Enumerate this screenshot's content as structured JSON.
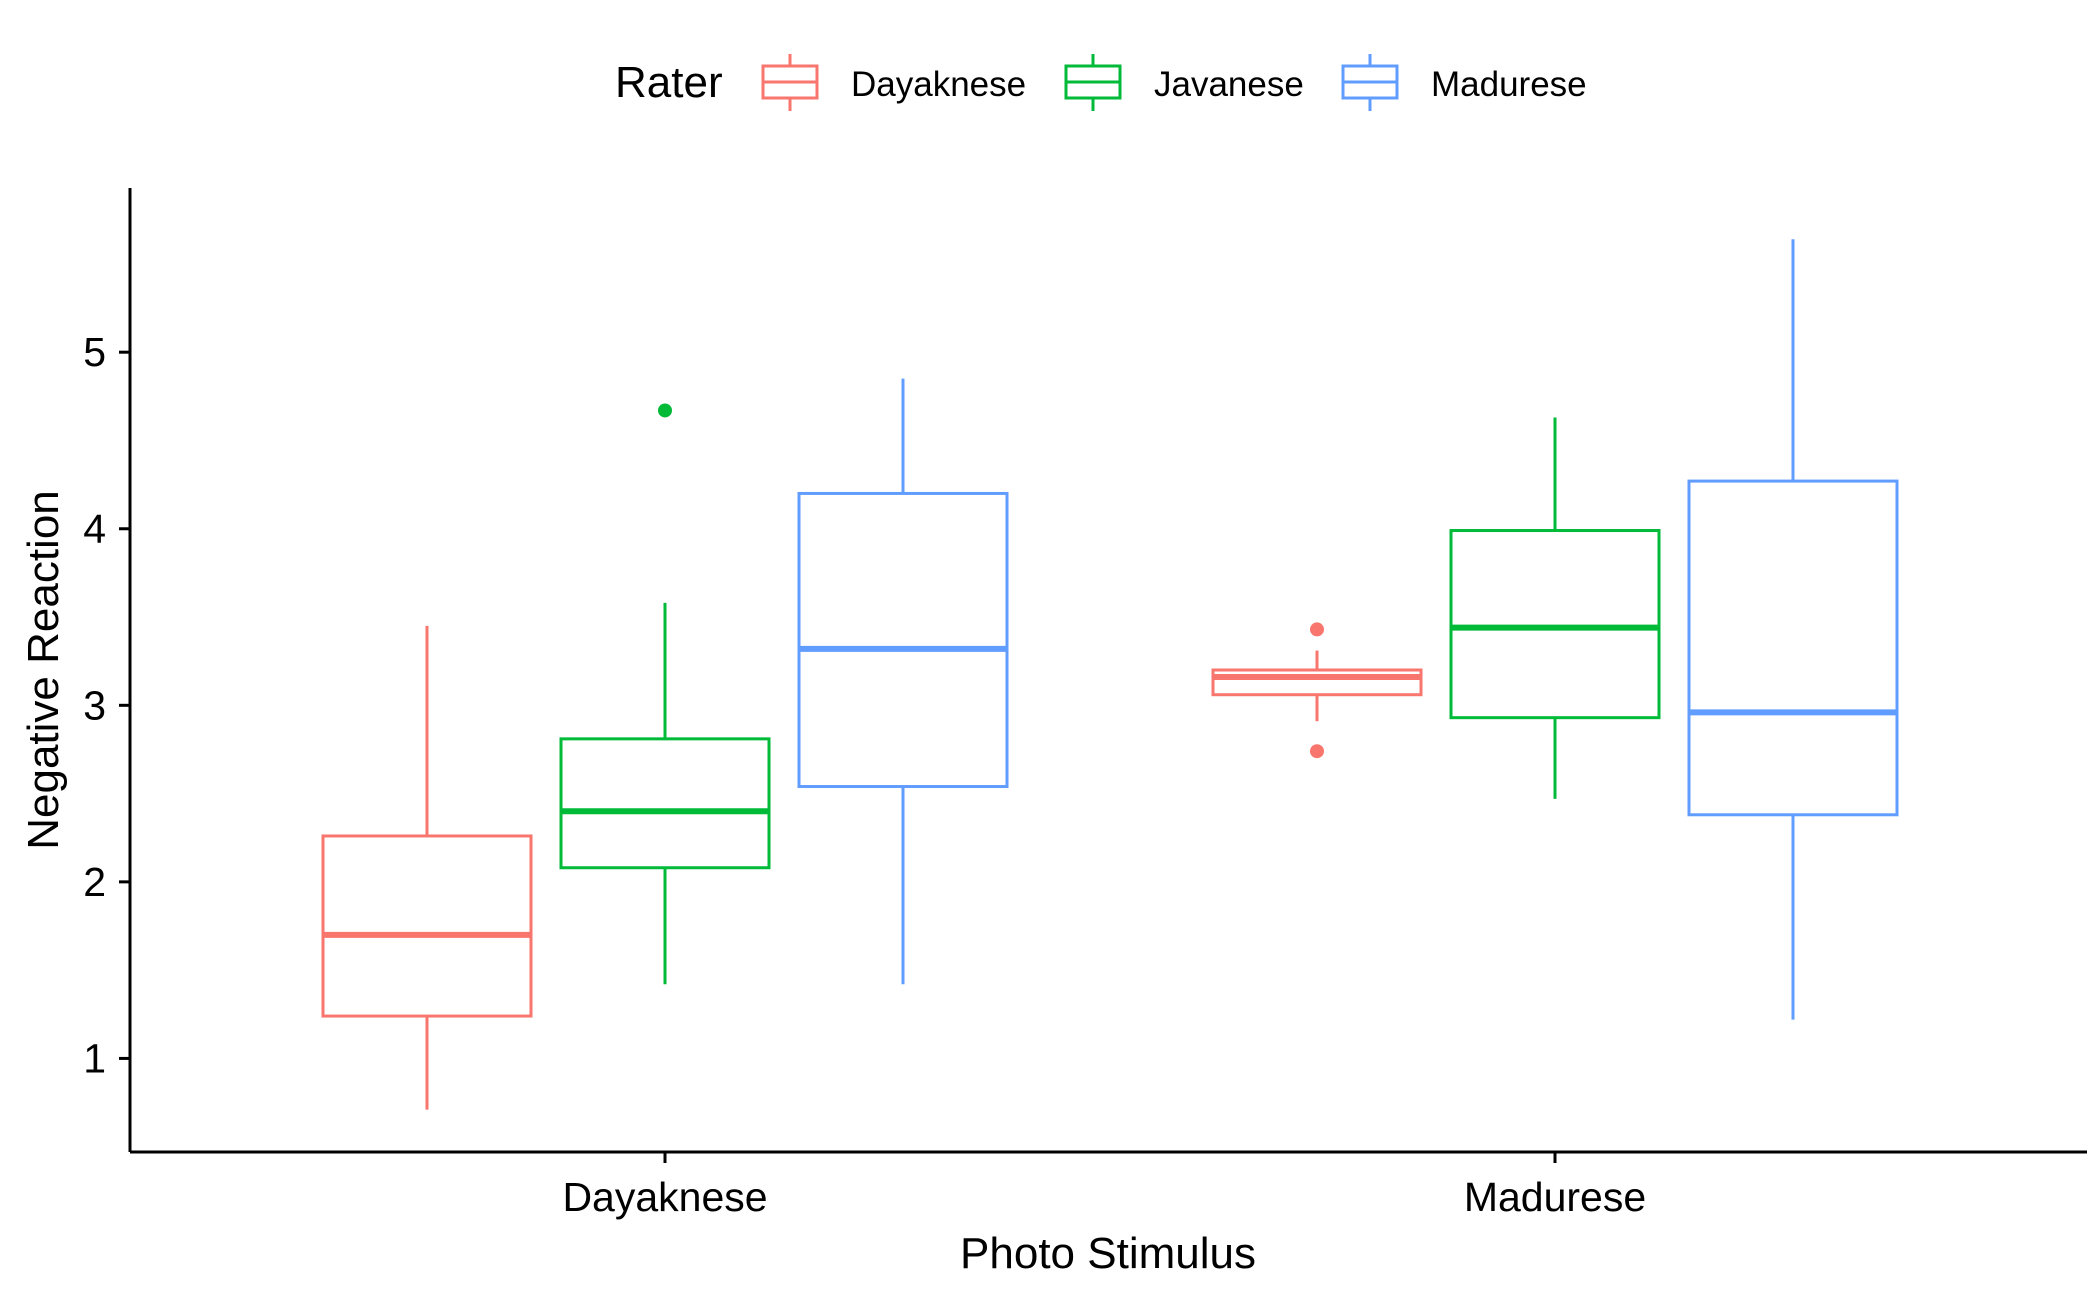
{
  "chart_data": {
    "type": "boxplot",
    "xlabel": "Photo Stimulus",
    "ylabel": "Negative Reaction",
    "ylim": [
      0.47,
      5.93
    ],
    "yticks": [
      1,
      2,
      3,
      4,
      5
    ],
    "categories": [
      "Dayaknese",
      "Madurese"
    ],
    "grid": false,
    "legend": {
      "title": "Rater",
      "position": "top",
      "entries": [
        "Dayaknese",
        "Javanese",
        "Madurese"
      ]
    },
    "series": [
      {
        "name": "Dayaknese",
        "color": "#F8766D",
        "boxes": [
          {
            "category": "Dayaknese",
            "lower_whisker": 0.71,
            "q1": 1.24,
            "median": 1.7,
            "q3": 2.26,
            "upper_whisker": 3.45,
            "outliers": []
          },
          {
            "category": "Madurese",
            "lower_whisker": 2.91,
            "q1": 3.06,
            "median": 3.16,
            "q3": 3.2,
            "upper_whisker": 3.31,
            "outliers": [
              3.43,
              2.74
            ]
          }
        ]
      },
      {
        "name": "Javanese",
        "color": "#00BA38",
        "boxes": [
          {
            "category": "Dayaknese",
            "lower_whisker": 1.42,
            "q1": 2.08,
            "median": 2.4,
            "q3": 2.81,
            "upper_whisker": 3.58,
            "outliers": [
              4.67
            ]
          },
          {
            "category": "Madurese",
            "lower_whisker": 2.47,
            "q1": 2.93,
            "median": 3.44,
            "q3": 3.99,
            "upper_whisker": 4.63,
            "outliers": []
          }
        ]
      },
      {
        "name": "Madurese",
        "color": "#619CFF",
        "boxes": [
          {
            "category": "Dayaknese",
            "lower_whisker": 1.42,
            "q1": 2.54,
            "median": 3.32,
            "q3": 4.2,
            "upper_whisker": 4.85,
            "outliers": []
          },
          {
            "category": "Madurese",
            "lower_whisker": 1.22,
            "q1": 2.38,
            "median": 2.96,
            "q3": 4.27,
            "upper_whisker": 5.64,
            "outliers": []
          }
        ]
      }
    ]
  }
}
